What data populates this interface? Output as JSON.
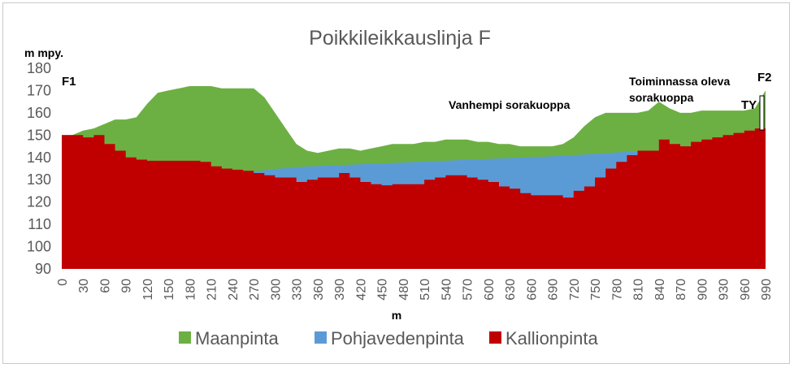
{
  "chart_data": {
    "type": "area",
    "title": "Poikkileikkauslinja F",
    "ylabel": "m mpy.",
    "xlabel": "m",
    "ylim": [
      90,
      180
    ],
    "xlim": [
      0,
      990
    ],
    "yticks": [
      90,
      100,
      110,
      120,
      130,
      140,
      150,
      160,
      170,
      180
    ],
    "xticks": [
      0,
      30,
      60,
      90,
      120,
      150,
      180,
      210,
      240,
      270,
      300,
      330,
      360,
      390,
      420,
      450,
      480,
      510,
      540,
      570,
      600,
      630,
      660,
      690,
      720,
      750,
      780,
      810,
      840,
      870,
      900,
      930,
      960,
      990
    ],
    "legend_position": "bottom",
    "grid": false,
    "colors": {
      "Maanpinta": "#6cb043",
      "Pohjavedenpinta": "#5b9bd5",
      "Kallionpinta": "#c00000"
    },
    "x": [
      0,
      15,
      30,
      45,
      60,
      75,
      90,
      105,
      120,
      135,
      150,
      165,
      180,
      195,
      210,
      225,
      240,
      255,
      270,
      285,
      300,
      315,
      330,
      345,
      360,
      375,
      390,
      405,
      420,
      435,
      450,
      465,
      480,
      495,
      510,
      525,
      540,
      555,
      570,
      585,
      600,
      615,
      630,
      645,
      660,
      675,
      690,
      705,
      720,
      735,
      750,
      765,
      780,
      795,
      810,
      825,
      840,
      855,
      870,
      885,
      900,
      915,
      930,
      945,
      960,
      975,
      990
    ],
    "series": [
      {
        "name": "Maanpinta",
        "values": [
          150,
          150,
          152,
          153,
          155,
          157,
          157,
          158,
          164,
          169,
          170,
          171,
          172,
          172,
          172,
          171,
          171,
          171,
          171,
          167,
          160,
          153,
          146,
          143,
          142,
          143,
          144,
          144,
          143,
          144,
          145,
          146,
          146,
          146,
          147,
          147,
          148,
          148,
          148,
          147,
          147,
          146,
          146,
          145,
          145,
          145,
          145,
          146,
          149,
          154,
          158,
          160,
          160,
          160,
          160,
          161,
          165,
          162,
          160,
          160,
          161,
          161,
          161,
          161,
          161,
          162,
          170
        ]
      },
      {
        "name": "Pohjavedenpinta",
        "values": [
          null,
          null,
          null,
          null,
          null,
          null,
          null,
          null,
          null,
          null,
          null,
          null,
          null,
          null,
          null,
          null,
          null,
          133,
          133.6,
          134.2,
          134.8,
          135.2,
          135.6,
          135.9,
          136.1,
          136.3,
          136.5,
          136.7,
          136.9,
          137.1,
          137.3,
          137.5,
          137.7,
          137.9,
          138.1,
          138.3,
          138.5,
          138.7,
          138.9,
          139.1,
          139.3,
          139.5,
          139.7,
          139.9,
          140.1,
          140.3,
          140.5,
          140.7,
          141,
          141.3,
          141.6,
          141.9,
          142.2,
          142.5,
          142.8,
          143,
          null,
          null,
          null,
          null,
          null,
          null,
          null,
          null,
          null,
          null,
          null
        ]
      },
      {
        "name": "Kallionpinta",
        "values": [
          150,
          150,
          149,
          150,
          146,
          143,
          140,
          139,
          138.5,
          138.5,
          138.5,
          138.5,
          138.5,
          138,
          136,
          135,
          134.5,
          134,
          133,
          132,
          131,
          131,
          129,
          130,
          131,
          131,
          133,
          131,
          129,
          128,
          127.5,
          128,
          128,
          128,
          130,
          131,
          132,
          132,
          131,
          130,
          129,
          127,
          126,
          124,
          123,
          123,
          123,
          122,
          125,
          127,
          131,
          135,
          138,
          141,
          143,
          143,
          148,
          146,
          145,
          147,
          148,
          149,
          150,
          151,
          152,
          153,
          154
        ]
      }
    ],
    "annotations": [
      "F1",
      "F2",
      "Vanhempi sorakuoppa",
      "Toiminnassa oleva",
      "sorakuoppa",
      "TY"
    ]
  }
}
